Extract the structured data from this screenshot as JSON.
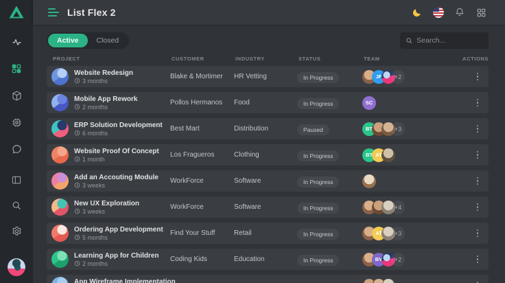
{
  "colors": {
    "accent_green": "#2bb386",
    "sidebar_bg": "#24272b",
    "row_bg": "#3a3d42",
    "badge_bg": "#45484e",
    "moon_yellow": "#f6c344"
  },
  "header": {
    "title": "List Flex 2",
    "icons": [
      "dark-mode-moon",
      "language-us-flag",
      "notifications-bell",
      "app-launcher-grid"
    ]
  },
  "sidebar": {
    "logo": "triangle-logo",
    "items": [
      "activity",
      "projects-grid-active",
      "package",
      "chip",
      "chat"
    ],
    "bottom_items": [
      "layout-panel",
      "search",
      "settings-gear"
    ],
    "user": "profile-avatar"
  },
  "tabs": [
    {
      "label": "Active",
      "active": true
    },
    {
      "label": "Closed",
      "active": false
    }
  ],
  "search": {
    "placeholder": "Search..."
  },
  "table": {
    "columns": [
      "Project",
      "Customer",
      "Industry",
      "Status",
      "Team",
      "Actions"
    ],
    "rows": [
      {
        "project": "Website Redesign",
        "duration": "3 months",
        "customer": "Blake & Mortimer",
        "industry": "HR Vetting",
        "status": "In Progress",
        "icon_colors": [
          "#6f95e0",
          "#4d74cf",
          "#b4d0f2"
        ],
        "team": {
          "members": [
            {
              "type": "photo",
              "colors": [
                "#d9ae89",
                "#8a6148"
              ]
            },
            {
              "type": "initials",
              "text": "JF",
              "color": "#2f9df0"
            },
            {
              "type": "illus",
              "colors": [
                "#2b3a66",
                "#e8377c",
                "#bcd6f2"
              ]
            }
          ],
          "extra": "+2"
        }
      },
      {
        "project": "Mobile App Rework",
        "duration": "2 months",
        "customer": "Pollos Hermanos",
        "industry": "Food",
        "status": "In Progress",
        "icon_colors": [
          "#8fb3ec",
          "#4656c4",
          "#6b83e0"
        ],
        "team": {
          "members": [
            {
              "type": "initials",
              "text": "SC",
              "color": "#8f6fd0"
            }
          ],
          "extra": ""
        }
      },
      {
        "project": "ERP Solution Development",
        "duration": "6 months",
        "customer": "Best Mart",
        "industry": "Distribution",
        "status": "Paused",
        "icon_colors": [
          "#3fc4c0",
          "#ee5f7e",
          "#273a6b"
        ],
        "team": {
          "members": [
            {
              "type": "initials",
              "text": "BT",
              "color": "#2bc48a"
            },
            {
              "type": "photo",
              "colors": [
                "#caa07e",
                "#6e4a33"
              ]
            },
            {
              "type": "photo",
              "colors": [
                "#d3b393",
                "#7a5a40"
              ]
            }
          ],
          "extra": "+3"
        }
      },
      {
        "project": "Website Proof Of Concept",
        "duration": "1 month",
        "customer": "Los Fragueros",
        "industry": "Clothing",
        "status": "In Progress",
        "icon_colors": [
          "#f08264",
          "#e8684a",
          "#f5a58b"
        ],
        "team": {
          "members": [
            {
              "type": "initials",
              "text": "BT",
              "color": "#2bc48a"
            },
            {
              "type": "initials",
              "text": "AT",
              "color": "#f2cc54"
            },
            {
              "type": "photo",
              "colors": [
                "#cfc0a8",
                "#5f4f3e"
              ]
            }
          ],
          "extra": ""
        }
      },
      {
        "project": "Add an Accouting Module",
        "duration": "3 weeks",
        "customer": "WorkForce",
        "industry": "Software",
        "status": "In Progress",
        "icon_colors": [
          "#ee7fa0",
          "#f2a36b",
          "#c98fd8"
        ],
        "team": {
          "members": [
            {
              "type": "photo",
              "colors": [
                "#e9dac6",
                "#97704e"
              ]
            }
          ],
          "extra": ""
        }
      },
      {
        "project": "New UX Exploration",
        "duration": "3 weeks",
        "customer": "WorkForce",
        "industry": "Software",
        "status": "In Progress",
        "icon_colors": [
          "#f5b98a",
          "#e0556a",
          "#44c3b2"
        ],
        "team": {
          "members": [
            {
              "type": "photo",
              "colors": [
                "#d9ae89",
                "#8a6148"
              ]
            },
            {
              "type": "photo",
              "colors": [
                "#caa07e",
                "#6e4a33"
              ]
            },
            {
              "type": "photo",
              "colors": [
                "#d8cfc0",
                "#8a8073"
              ]
            }
          ],
          "extra": "+4"
        }
      },
      {
        "project": "Ordering App Development",
        "duration": "5 months",
        "customer": "Find Your Stuff",
        "industry": "Retail",
        "status": "In Progress",
        "icon_colors": [
          "#f07a6a",
          "#e45a52",
          "#fae9e2"
        ],
        "team": {
          "members": [
            {
              "type": "photo",
              "colors": [
                "#d9ae89",
                "#8a6148"
              ]
            },
            {
              "type": "initials",
              "text": "AT",
              "color": "#f2cc54"
            },
            {
              "type": "photo",
              "colors": [
                "#d8cfc0",
                "#8a8073"
              ]
            }
          ],
          "extra": "+3"
        }
      },
      {
        "project": "Learning App for Children",
        "duration": "2 months",
        "customer": "Coding Kids",
        "industry": "Education",
        "status": "In Progress",
        "icon_colors": [
          "#2ec489",
          "#1da06c",
          "#7fe0b8"
        ],
        "team": {
          "members": [
            {
              "type": "photo",
              "colors": [
                "#d9ae89",
                "#8a6148"
              ]
            },
            {
              "type": "initials",
              "text": "BV",
              "color": "#7e68c9"
            },
            {
              "type": "illus",
              "colors": [
                "#2b3a66",
                "#e8377c",
                "#bcd6f2"
              ]
            }
          ],
          "extra": "+2"
        }
      },
      {
        "project": "App Wireframe Implementation",
        "duration": null,
        "customer": null,
        "industry": null,
        "status": null,
        "icon_colors": [
          "#7fb3e0",
          "#6aa3d8",
          "#a8cdf0"
        ],
        "team": {
          "members": [
            {
              "type": "photo",
              "colors": [
                "#caa07e",
                "#6e4a33"
              ]
            },
            {
              "type": "photo",
              "colors": [
                "#d3b393",
                "#7a5a40"
              ]
            },
            {
              "type": "photo",
              "colors": [
                "#d8cfc0",
                "#8a8073"
              ]
            }
          ],
          "extra": ""
        }
      }
    ]
  }
}
